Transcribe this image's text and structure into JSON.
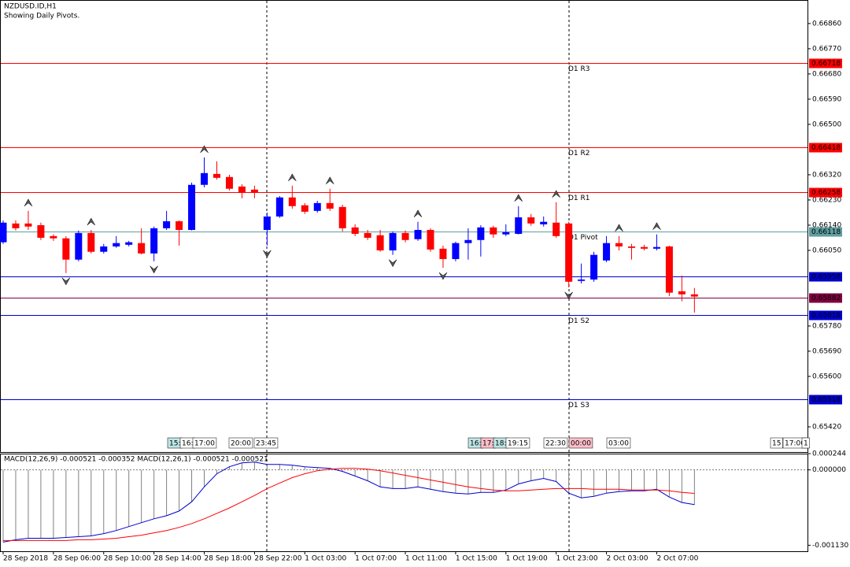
{
  "chart_data": [
    {
      "type": "candlestick",
      "title": "NZDUSD.ID,H1",
      "subtitle": "Showing Daily Pivots.",
      "categories": [
        "28 Sep 2018",
        null,
        null,
        null,
        "28 Sep 06:00",
        null,
        null,
        null,
        "28 Sep 10:00",
        null,
        null,
        null,
        "28 Sep 14:00",
        null,
        null,
        null,
        "28 Sep 18:00",
        null,
        null,
        null,
        "28 Sep 22:00",
        null,
        null,
        null,
        "1 Oct 03:00",
        null,
        null,
        null,
        "1 Oct 07:00",
        null,
        null,
        null,
        "1 Oct 11:00",
        null,
        null,
        null,
        "1 Oct 15:00",
        null,
        null,
        null,
        "1 Oct 19:00",
        null,
        null,
        null,
        "1 Oct 23:00",
        null,
        null,
        null,
        "2 Oct 03:00",
        null,
        null,
        null,
        "2 Oct 07:00",
        null,
        null,
        null
      ],
      "open": [
        0.66079,
        0.66146,
        0.66146,
        0.6614,
        0.66101,
        0.66093,
        0.66017,
        0.66112,
        0.66045,
        0.66064,
        0.6607,
        0.66076,
        0.66039,
        0.66129,
        0.66154,
        0.66123,
        0.66284,
        0.66323,
        0.66312,
        0.66278,
        0.66267,
        0.66123,
        0.66171,
        0.66239,
        0.66211,
        0.66191,
        0.66219,
        0.66205,
        0.66132,
        0.66112,
        0.66104,
        0.6605,
        0.66112,
        0.6609,
        0.66123,
        0.66056,
        0.66019,
        0.66076,
        0.66087,
        0.66132,
        0.66107,
        0.66109,
        0.66168,
        0.66143,
        0.66149,
        0.66146,
        0.65941,
        0.65946,
        0.66014,
        0.66076,
        0.66064,
        0.66062,
        0.66056,
        0.66064,
        0.65904,
        0.65893
      ],
      "high": [
        0.66157,
        0.66157,
        0.66191,
        0.66149,
        0.66107,
        0.66101,
        0.66121,
        0.66123,
        0.66073,
        0.66101,
        0.66084,
        0.66129,
        0.66135,
        0.66191,
        0.66157,
        0.66292,
        0.66382,
        0.66368,
        0.6632,
        0.66286,
        0.66281,
        0.66185,
        0.66244,
        0.66281,
        0.66219,
        0.66227,
        0.6627,
        0.66213,
        0.66143,
        0.66123,
        0.66123,
        0.66118,
        0.66121,
        0.66152,
        0.66129,
        0.66067,
        0.66081,
        0.66129,
        0.6614,
        0.66138,
        0.66143,
        0.66208,
        0.6618,
        0.66171,
        0.66222,
        0.66152,
        0.66003,
        0.66045,
        0.66101,
        0.66101,
        0.66073,
        0.6607,
        0.66107,
        0.66067,
        0.6596,
        0.65916
      ],
      "low": [
        0.66073,
        0.66121,
        0.66123,
        0.66087,
        0.66084,
        0.65969,
        0.66011,
        0.66039,
        0.66039,
        0.66059,
        0.66064,
        0.66036,
        0.66011,
        0.66123,
        0.66067,
        0.66121,
        0.66275,
        0.66303,
        0.66264,
        0.66236,
        0.66236,
        0.66067,
        0.66166,
        0.66199,
        0.6618,
        0.66185,
        0.66191,
        0.66118,
        0.66101,
        0.66087,
        0.66045,
        0.66034,
        0.66079,
        0.66084,
        0.66045,
        0.65988,
        0.66011,
        0.66017,
        0.66028,
        0.66095,
        0.66101,
        0.66107,
        0.66138,
        0.66135,
        0.66095,
        0.65918,
        0.65932,
        0.65938,
        0.66008,
        0.6605,
        0.66017,
        0.6605,
        0.6605,
        0.65887,
        0.65868,
        0.65828
      ],
      "close": [
        0.66149,
        0.66129,
        0.66135,
        0.66095,
        0.66093,
        0.66017,
        0.66112,
        0.66045,
        0.66064,
        0.66076,
        0.66079,
        0.66039,
        0.66129,
        0.66154,
        0.66123,
        0.66284,
        0.66326,
        0.66309,
        0.6627,
        0.66258,
        0.66258,
        0.66171,
        0.66239,
        0.66208,
        0.66188,
        0.66219,
        0.66199,
        0.66129,
        0.66109,
        0.66095,
        0.6605,
        0.66112,
        0.66087,
        0.66123,
        0.66053,
        0.66019,
        0.66076,
        0.66087,
        0.66132,
        0.66107,
        0.66115,
        0.66168,
        0.66146,
        0.66152,
        0.66101,
        0.65938,
        0.65946,
        0.66034,
        0.66076,
        0.66064,
        0.66059,
        0.66056,
        0.66062,
        0.65899,
        0.65893,
        0.65885
      ],
      "bull_color": "#0000ff",
      "bear_color": "#ff0000",
      "ylim": [
        0.6533,
        0.66944
      ],
      "yticks": [
        {
          "value": 0.6686,
          "label": "0.66860"
        },
        {
          "value": 0.6677,
          "label": "0.66770"
        },
        {
          "value": 0.6668,
          "label": "0.66680"
        },
        {
          "value": 0.6659,
          "label": "0.66590"
        },
        {
          "value": 0.665,
          "label": "0.66500"
        },
        {
          "value": 0.6632,
          "label": "0.66320"
        },
        {
          "value": 0.6623,
          "label": "0.66230"
        },
        {
          "value": 0.6614,
          "label": "0.66140"
        },
        {
          "value": 0.6605,
          "label": "0.66050"
        },
        {
          "value": 0.6578,
          "label": "0.65780"
        },
        {
          "value": 0.6569,
          "label": "0.65690"
        },
        {
          "value": 0.656,
          "label": "0.65600"
        },
        {
          "value": 0.6542,
          "label": "0.65420"
        }
      ],
      "levels": [
        {
          "name": "D1 R3",
          "value": 0.66718,
          "color": "#ff0000"
        },
        {
          "name": "D1 R2",
          "value": 0.66418,
          "color": "#ff0000"
        },
        {
          "name": "D1 R1",
          "value": 0.66258,
          "color": "#ff0000"
        },
        {
          "name": "D1 Pivot",
          "value": 0.66118,
          "color": "#5f9ea0"
        },
        {
          "value": 0.65958,
          "color": "#0000cd"
        },
        {
          "value": 0.65882,
          "color": "#800040"
        },
        {
          "name": "D1 S2",
          "value": 0.65818,
          "color": "#0000cd"
        },
        {
          "name": "D1 S3",
          "value": 0.65518,
          "color": "#0000cd"
        }
      ],
      "fractals_up": [
        2,
        7,
        16,
        23,
        26,
        33,
        41,
        44,
        49,
        52
      ],
      "fractals_down": [
        5,
        12,
        21,
        31,
        35,
        45
      ],
      "time_markers": [
        "15:",
        "16:",
        "17:00",
        "20:00",
        "23:45",
        "16:",
        "17:",
        "18:",
        "19:15",
        "22:30",
        "00:00",
        "03:00",
        "15",
        "17:00",
        "1"
      ]
    },
    {
      "type": "macd",
      "title": "MACD(12,26,9) -0.000521 -0.000352 MACD(12,26,1) -0.000521 -0.000521",
      "histogram_color": "#808080",
      "series": [
        {
          "color": "#0000cd",
          "values": [
            -0.001083,
            -0.001048,
            -0.001025,
            -0.001025,
            -0.001025,
            -0.001013,
            -0.001002,
            -0.00099,
            -0.000955,
            -0.000909,
            -0.00085,
            -0.000792,
            -0.000734,
            -0.000687,
            -0.000617,
            -0.000478,
            -0.000256,
            -5.8e-05,
            4.7e-05,
            0.000105,
            0.000116,
            8.2e-05,
            8.2e-05,
            7e-05,
            4.7e-05,
            3.5e-05,
            2.3e-05,
            -2.3e-05,
            -9.3e-05,
            -0.000163,
            -0.000256,
            -0.00028,
            -0.00028,
            -0.000256,
            -0.000291,
            -0.000326,
            -0.000349,
            -0.000361,
            -0.000338,
            -0.000338,
            -0.000303,
            -0.00021,
            -0.000163,
            -0.000128,
            -0.000175,
            -0.000349,
            -0.000419,
            -0.000396,
            -0.000349,
            -0.000326,
            -0.000315,
            -0.000315,
            -0.000291,
            -0.000408,
            -0.000489,
            -0.000521
          ]
        },
        {
          "color": "#ff0000",
          "values": [
            -0.00106,
            -0.00106,
            -0.00106,
            -0.00106,
            -0.00106,
            -0.00106,
            -0.001048,
            -0.001048,
            -0.001037,
            -0.001025,
            -0.001002,
            -0.000979,
            -0.000944,
            -0.000909,
            -0.000862,
            -0.000804,
            -0.000734,
            -0.000652,
            -0.000571,
            -0.000478,
            -0.000384,
            -0.00028,
            -0.000198,
            -0.000116,
            -5.8e-05,
            -1.2e-05,
            1.2e-05,
            2.3e-05,
            2.3e-05,
            1.2e-05,
            -1.2e-05,
            -4.7e-05,
            -8.2e-05,
            -0.000116,
            -0.000151,
            -0.000186,
            -0.000221,
            -0.000256,
            -0.00028,
            -0.000303,
            -0.000315,
            -0.000315,
            -0.000303,
            -0.000291,
            -0.00028,
            -0.00028,
            -0.00028,
            -0.000291,
            -0.000291,
            -0.000291,
            -0.000303,
            -0.000303,
            -0.000303,
            -0.000315,
            -0.000338,
            -0.000352
          ]
        }
      ],
      "ylim": [
        -0.00122,
        0.000244
      ],
      "yticks": [
        0.000244,
        {
          "value": 0,
          "label": "0.000000"
        },
        {
          "value": -0.00113,
          "label": "-0.001130"
        }
      ]
    }
  ]
}
